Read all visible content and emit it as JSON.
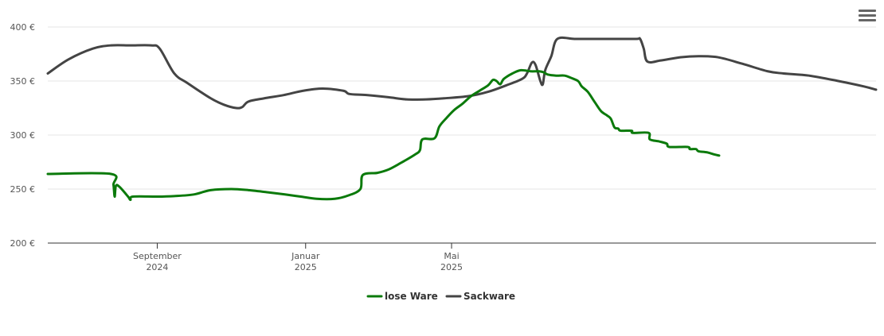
{
  "chart_data": {
    "type": "line",
    "title": "",
    "xlabel": "",
    "ylabel": "",
    "ylim": [
      200,
      400
    ],
    "y_ticks": [
      "200 €",
      "250 €",
      "300 €",
      "350 €",
      "400 €"
    ],
    "x_ticks": [
      {
        "month": "September",
        "year": "2024"
      },
      {
        "month": "Januar",
        "year": "2025"
      },
      {
        "month": "Mai",
        "year": "2025"
      }
    ],
    "legend_position": "bottom-center",
    "grid": true,
    "series": [
      {
        "name": "lose Ware",
        "color": "#0b7a0b",
        "points": [
          [
            "2024-06-03",
            264
          ],
          [
            "2024-07-25",
            264
          ],
          [
            "2024-07-27",
            254
          ],
          [
            "2024-07-28",
            243
          ],
          [
            "2024-07-29",
            253
          ],
          [
            "2024-08-01",
            252
          ],
          [
            "2024-08-08",
            243
          ],
          [
            "2024-08-10",
            240
          ],
          [
            "2024-08-12",
            243
          ],
          [
            "2024-09-01",
            243
          ],
          [
            "2024-09-15",
            243.5
          ],
          [
            "2024-10-01",
            245
          ],
          [
            "2024-10-15",
            249
          ],
          [
            "2024-11-01",
            250
          ],
          [
            "2024-11-15",
            249
          ],
          [
            "2024-12-01",
            247
          ],
          [
            "2024-12-15",
            245
          ],
          [
            "2024-12-28",
            243
          ],
          [
            "2025-01-10",
            241
          ],
          [
            "2025-01-25",
            241
          ],
          [
            "2025-02-05",
            244
          ],
          [
            "2025-02-15",
            250
          ],
          [
            "2025-02-17",
            263
          ],
          [
            "2025-03-01",
            265
          ],
          [
            "2025-03-10",
            268
          ],
          [
            "2025-03-20",
            274
          ],
          [
            "2025-04-01",
            282
          ],
          [
            "2025-04-05",
            286
          ],
          [
            "2025-04-07",
            296
          ],
          [
            "2025-04-17",
            297
          ],
          [
            "2025-04-21",
            308
          ],
          [
            "2025-04-27",
            316
          ],
          [
            "2025-05-03",
            323
          ],
          [
            "2025-05-10",
            329
          ],
          [
            "2025-05-17",
            336
          ],
          [
            "2025-05-24",
            341
          ],
          [
            "2025-05-31",
            346
          ],
          [
            "2025-06-04",
            351
          ],
          [
            "2025-06-07",
            350
          ],
          [
            "2025-06-10",
            347
          ],
          [
            "2025-06-13",
            352
          ],
          [
            "2025-06-20",
            357
          ],
          [
            "2025-06-27",
            360
          ],
          [
            "2025-07-05",
            359
          ],
          [
            "2025-07-12",
            359
          ],
          [
            "2025-07-16",
            358
          ],
          [
            "2025-07-19",
            356
          ],
          [
            "2025-07-26",
            355
          ],
          [
            "2025-08-02",
            355
          ],
          [
            "2025-08-07",
            353
          ],
          [
            "2025-08-13",
            350
          ],
          [
            "2025-08-16",
            345
          ],
          [
            "2025-08-21",
            340
          ],
          [
            "2025-08-27",
            330
          ],
          [
            "2025-09-01",
            322
          ],
          [
            "2025-09-06",
            318
          ],
          [
            "2025-09-09",
            315
          ],
          [
            "2025-09-12",
            307
          ],
          [
            "2025-09-15",
            306
          ],
          [
            "2025-09-17",
            304
          ],
          [
            "2025-09-26",
            304
          ],
          [
            "2025-09-27",
            302
          ],
          [
            "2025-10-10",
            302
          ],
          [
            "2025-10-11",
            296
          ],
          [
            "2025-10-19",
            294
          ],
          [
            "2025-10-25",
            292
          ],
          [
            "2025-10-27",
            289
          ],
          [
            "2025-11-11",
            289
          ],
          [
            "2025-11-13",
            287
          ],
          [
            "2025-11-18",
            287
          ],
          [
            "2025-11-20",
            285
          ],
          [
            "2025-11-27",
            284
          ],
          [
            "2025-12-03",
            282
          ],
          [
            "2025-12-07",
            281
          ]
        ]
      },
      {
        "name": "Sackware",
        "color": "#444444",
        "points": [
          [
            "2024-06-03",
            357
          ],
          [
            "2024-06-20",
            370
          ],
          [
            "2024-07-10",
            380
          ],
          [
            "2024-07-25",
            383
          ],
          [
            "2024-08-10",
            383
          ],
          [
            "2024-08-27",
            383
          ],
          [
            "2024-09-03",
            380
          ],
          [
            "2024-09-15",
            357
          ],
          [
            "2024-09-26",
            348
          ],
          [
            "2024-10-15",
            334
          ],
          [
            "2024-10-26",
            328
          ],
          [
            "2024-11-05",
            325
          ],
          [
            "2024-11-10",
            326
          ],
          [
            "2024-11-15",
            331
          ],
          [
            "2024-11-28",
            334
          ],
          [
            "2024-12-14",
            337
          ],
          [
            "2024-12-30",
            341
          ],
          [
            "2025-01-15",
            343
          ],
          [
            "2025-02-01",
            341
          ],
          [
            "2025-02-06",
            338
          ],
          [
            "2025-02-20",
            337
          ],
          [
            "2025-03-10",
            335
          ],
          [
            "2025-03-25",
            333
          ],
          [
            "2025-04-10",
            333
          ],
          [
            "2025-04-25",
            334
          ],
          [
            "2025-05-15",
            336
          ],
          [
            "2025-05-31",
            340
          ],
          [
            "2025-06-15",
            346
          ],
          [
            "2025-06-28",
            352
          ],
          [
            "2025-07-02",
            357
          ],
          [
            "2025-07-06",
            367
          ],
          [
            "2025-07-09",
            365
          ],
          [
            "2025-07-13",
            350
          ],
          [
            "2025-07-15",
            347
          ],
          [
            "2025-07-17",
            360
          ],
          [
            "2025-07-22",
            373
          ],
          [
            "2025-07-27",
            389
          ],
          [
            "2025-08-10",
            389
          ],
          [
            "2025-08-25",
            389
          ],
          [
            "2025-09-10",
            389
          ],
          [
            "2025-09-30",
            389
          ],
          [
            "2025-10-03",
            389
          ],
          [
            "2025-10-06",
            380
          ],
          [
            "2025-10-09",
            368
          ],
          [
            "2025-10-20",
            369
          ],
          [
            "2025-11-05",
            372
          ],
          [
            "2025-11-20",
            373
          ],
          [
            "2025-12-06",
            372
          ],
          [
            "2025-12-26",
            366
          ],
          [
            "2026-01-16",
            359
          ],
          [
            "2026-01-29",
            357
          ],
          [
            "2026-02-19",
            355
          ],
          [
            "2026-03-15",
            350
          ],
          [
            "2026-04-05",
            345
          ],
          [
            "2026-04-15",
            342
          ]
        ]
      }
    ]
  }
}
